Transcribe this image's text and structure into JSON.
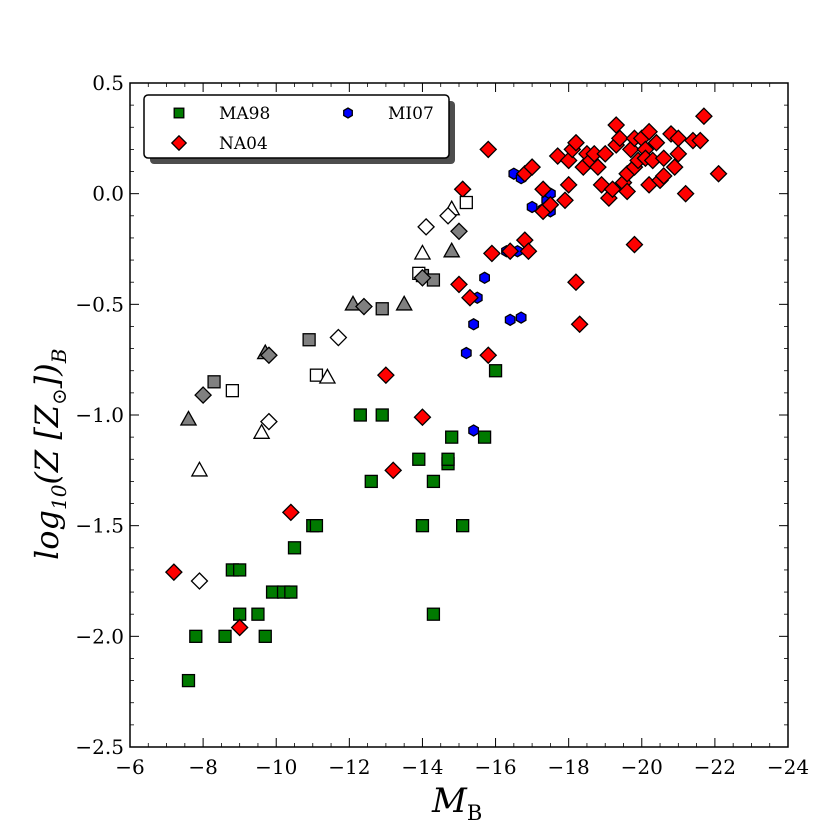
{
  "chart_data": {
    "type": "scatter",
    "title": "",
    "xlabel": "M_B",
    "ylabel": "log10(Z [Z_sun])_B",
    "xlabel_main": "M",
    "xlabel_sub": "B",
    "ylabel_parts": {
      "log": "log",
      "sub10": "10",
      "open": "(",
      "Z": "Z",
      "bracket_open": " [",
      "Zsun": "Z",
      "sun": "⊙",
      "bracket_close": "])",
      "subB": "B"
    },
    "xlim": [
      -6,
      -24
    ],
    "ylim": [
      -2.5,
      0.5
    ],
    "x_ticks": [
      -6,
      -8,
      -10,
      -12,
      -14,
      -16,
      -18,
      -20,
      -22,
      -24
    ],
    "x_tick_labels": [
      "−6",
      "−8",
      "−10",
      "−12",
      "−14",
      "−16",
      "−18",
      "−20",
      "−22",
      "−24"
    ],
    "y_ticks": [
      -2.5,
      -2.0,
      -1.5,
      -1.0,
      -0.5,
      0.0,
      0.5
    ],
    "y_tick_labels": [
      "−2.5",
      "−2.0",
      "−1.5",
      "−1.0",
      "−0.5",
      "0.0",
      "0.5"
    ],
    "legend": {
      "placement": "top-left",
      "entries": [
        {
          "label": "MA98",
          "marker": "square",
          "color": "#007a00"
        },
        {
          "label": "MI07",
          "marker": "hexagon",
          "color": "#0000ff"
        },
        {
          "label": "NA04",
          "marker": "diamond",
          "color": "#ff0000"
        }
      ]
    },
    "series": [
      {
        "name": "MA98",
        "marker": "square",
        "fill": "#007a00",
        "points": [
          [
            -7.6,
            -2.2
          ],
          [
            -7.8,
            -2.0
          ],
          [
            -8.6,
            -2.0
          ],
          [
            -8.8,
            -1.7
          ],
          [
            -9.0,
            -1.7
          ],
          [
            -9.0,
            -1.9
          ],
          [
            -9.5,
            -1.9
          ],
          [
            -9.7,
            -2.0
          ],
          [
            -9.9,
            -1.8
          ],
          [
            -10.2,
            -1.8
          ],
          [
            -10.4,
            -1.8
          ],
          [
            -10.5,
            -1.6
          ],
          [
            -11.0,
            -1.5
          ],
          [
            -11.1,
            -1.5
          ],
          [
            -12.3,
            -1.0
          ],
          [
            -12.6,
            -1.3
          ],
          [
            -12.9,
            -1.0
          ],
          [
            -13.9,
            -1.2
          ],
          [
            -14.0,
            -1.5
          ],
          [
            -14.3,
            -1.3
          ],
          [
            -14.3,
            -1.9
          ],
          [
            -14.7,
            -1.22
          ],
          [
            -14.7,
            -1.2
          ],
          [
            -14.8,
            -1.1
          ],
          [
            -15.1,
            -1.5
          ],
          [
            -15.7,
            -1.1
          ],
          [
            -16.0,
            -0.8
          ]
        ]
      },
      {
        "name": "MI07",
        "marker": "hexagon",
        "fill": "#0000ff",
        "points": [
          [
            -15.2,
            -0.72
          ],
          [
            -15.4,
            -0.59
          ],
          [
            -15.4,
            -1.07
          ],
          [
            -15.5,
            -0.47
          ],
          [
            -15.7,
            -0.38
          ],
          [
            -16.3,
            -0.26
          ],
          [
            -16.4,
            -0.57
          ],
          [
            -16.4,
            -0.26
          ],
          [
            -16.6,
            -0.26
          ],
          [
            -16.7,
            -0.56
          ],
          [
            -16.5,
            0.09
          ],
          [
            -16.7,
            0.07
          ],
          [
            -17.0,
            -0.06
          ],
          [
            -17.3,
            -0.07
          ],
          [
            -17.4,
            -0.03
          ],
          [
            -17.5,
            0.0
          ],
          [
            -17.5,
            -0.08
          ]
        ]
      },
      {
        "name": "NA04",
        "marker": "diamond",
        "fill": "#ff0000",
        "points": [
          [
            -7.2,
            -1.71
          ],
          [
            -9.0,
            -1.96
          ],
          [
            -10.4,
            -1.44
          ],
          [
            -13.0,
            -0.82
          ],
          [
            -13.2,
            -1.25
          ],
          [
            -14.0,
            -1.01
          ],
          [
            -14.0,
            -0.37
          ],
          [
            -15.0,
            -0.41
          ],
          [
            -15.1,
            0.02
          ],
          [
            -15.3,
            -0.47
          ],
          [
            -15.8,
            0.2
          ],
          [
            -15.8,
            -0.73
          ],
          [
            -15.9,
            -0.27
          ],
          [
            -16.4,
            -0.26
          ],
          [
            -16.8,
            -0.21
          ],
          [
            -16.9,
            -0.26
          ],
          [
            -16.8,
            0.09
          ],
          [
            -17.0,
            0.12
          ],
          [
            -17.3,
            0.02
          ],
          [
            -17.3,
            -0.08
          ],
          [
            -17.5,
            -0.05
          ],
          [
            -17.7,
            0.17
          ],
          [
            -17.9,
            -0.03
          ],
          [
            -18.0,
            0.04
          ],
          [
            -18.0,
            0.15
          ],
          [
            -18.1,
            0.2
          ],
          [
            -18.2,
            0.23
          ],
          [
            -18.4,
            0.12
          ],
          [
            -18.2,
            -0.4
          ],
          [
            -18.3,
            -0.59
          ],
          [
            -18.5,
            0.18
          ],
          [
            -18.6,
            0.15
          ],
          [
            -18.7,
            0.18
          ],
          [
            -18.8,
            0.12
          ],
          [
            -18.9,
            0.04
          ],
          [
            -19.0,
            0.18
          ],
          [
            -19.1,
            -0.02
          ],
          [
            -19.2,
            0.02
          ],
          [
            -19.3,
            0.22
          ],
          [
            -19.3,
            0.31
          ],
          [
            -19.4,
            0.25
          ],
          [
            -19.5,
            0.05
          ],
          [
            -19.6,
            0.09
          ],
          [
            -19.6,
            0.01
          ],
          [
            -19.7,
            0.2
          ],
          [
            -19.8,
            0.25
          ],
          [
            -19.8,
            0.12
          ],
          [
            -19.8,
            -0.23
          ],
          [
            -19.9,
            0.15
          ],
          [
            -20.0,
            0.25
          ],
          [
            -20.1,
            0.2
          ],
          [
            -20.1,
            0.16
          ],
          [
            -20.2,
            0.04
          ],
          [
            -20.2,
            0.28
          ],
          [
            -20.3,
            0.15
          ],
          [
            -20.4,
            0.23
          ],
          [
            -20.5,
            0.06
          ],
          [
            -20.6,
            0.08
          ],
          [
            -20.6,
            0.16
          ],
          [
            -20.8,
            0.27
          ],
          [
            -20.9,
            0.12
          ],
          [
            -21.0,
            0.25
          ],
          [
            -21.0,
            0.18
          ],
          [
            -21.2,
            0.0
          ],
          [
            -21.4,
            0.24
          ],
          [
            -21.6,
            0.24
          ],
          [
            -21.7,
            0.35
          ],
          [
            -22.1,
            0.09
          ]
        ]
      },
      {
        "name": "grey squares",
        "marker": "square",
        "fill": "#808080",
        "points": [
          [
            -8.3,
            -0.85
          ],
          [
            -10.9,
            -0.66
          ],
          [
            -12.9,
            -0.52
          ],
          [
            -14.0,
            -0.37
          ],
          [
            -14.3,
            -0.39
          ]
        ]
      },
      {
        "name": "open squares",
        "marker": "square",
        "fill": "#ffffff",
        "points": [
          [
            -8.8,
            -0.89
          ],
          [
            -11.1,
            -0.82
          ],
          [
            -13.9,
            -0.36
          ],
          [
            -15.2,
            -0.04
          ]
        ]
      },
      {
        "name": "grey triangles",
        "marker": "triangle",
        "fill": "#808080",
        "points": [
          [
            -7.6,
            -1.02
          ],
          [
            -9.7,
            -0.72
          ],
          [
            -12.1,
            -0.5
          ],
          [
            -13.5,
            -0.5
          ],
          [
            -14.8,
            -0.26
          ]
        ]
      },
      {
        "name": "open triangles",
        "marker": "triangle",
        "fill": "#ffffff",
        "points": [
          [
            -7.9,
            -1.25
          ],
          [
            -9.6,
            -1.08
          ],
          [
            -11.4,
            -0.83
          ],
          [
            -14.0,
            -0.27
          ],
          [
            -14.8,
            -0.07
          ]
        ]
      },
      {
        "name": "grey diamonds",
        "marker": "diamond",
        "fill": "#808080",
        "points": [
          [
            -8.0,
            -0.91
          ],
          [
            -9.8,
            -0.73
          ],
          [
            -12.4,
            -0.51
          ],
          [
            -14.0,
            -0.38
          ],
          [
            -15.0,
            -0.17
          ]
        ]
      },
      {
        "name": "open diamonds",
        "marker": "diamond",
        "fill": "#ffffff",
        "points": [
          [
            -7.9,
            -1.75
          ],
          [
            -9.8,
            -1.03
          ],
          [
            -11.7,
            -0.65
          ],
          [
            -14.1,
            -0.15
          ],
          [
            -14.7,
            -0.1
          ]
        ]
      }
    ]
  }
}
